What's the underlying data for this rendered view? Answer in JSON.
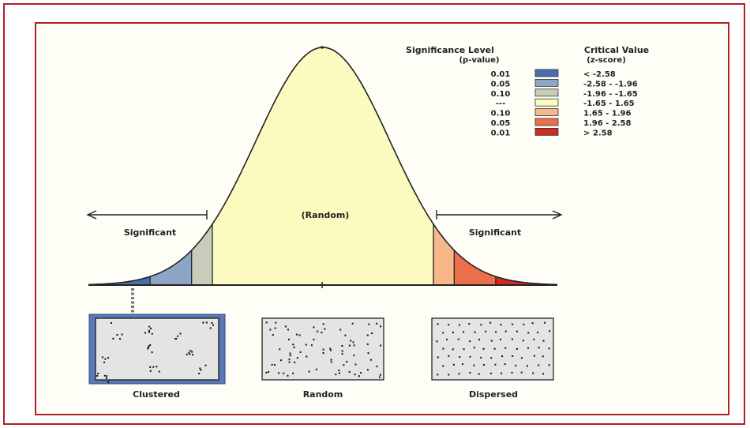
{
  "legend": {
    "left_title_line1": "Significance Level",
    "left_title_line2": "(p-value)",
    "right_title_line1": "Critical Value",
    "right_title_line2": "(z-score)",
    "rows": [
      {
        "p": "0.01",
        "z": "< -2.58",
        "color": "#4a6fae"
      },
      {
        "p": "0.05",
        "z": "-2.58 - -1.96",
        "color": "#8ea6c6"
      },
      {
        "p": "0.10",
        "z": "-1.96 - -1.65",
        "color": "#c7ccbb"
      },
      {
        "p": "---",
        "z": "-1.65 - 1.65",
        "color": "#fcfbbf"
      },
      {
        "p": "0.10",
        "z": "1.65 - 1.96",
        "color": "#f6b889"
      },
      {
        "p": "0.05",
        "z": "1.96 - 2.58",
        "color": "#ec6f4c"
      },
      {
        "p": "0.01",
        "z": "> 2.58",
        "color": "#cc2b22"
      }
    ]
  },
  "curve": {
    "center_label": "(Random)",
    "left_label": "Significant",
    "right_label": "Significant",
    "z_min": -3.5,
    "z_max": 3.5,
    "cutoffs": [
      -2.58,
      -1.96,
      -1.65,
      1.65,
      1.96,
      2.58
    ]
  },
  "patterns": [
    {
      "label": "Clustered",
      "type": "clustered",
      "highlighted": true
    },
    {
      "label": "Random",
      "type": "random",
      "highlighted": false
    },
    {
      "label": "Dispersed",
      "type": "dispersed",
      "highlighted": false
    }
  ]
}
